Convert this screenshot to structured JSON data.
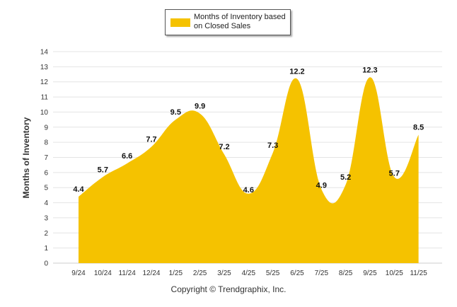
{
  "chart_data": {
    "type": "area",
    "title": "",
    "xlabel": "",
    "ylabel": "Months of Inventory",
    "ylim": [
      0,
      14
    ],
    "yticks": [
      0,
      1,
      2,
      3,
      4,
      5,
      6,
      7,
      8,
      9,
      10,
      11,
      12,
      13,
      14
    ],
    "grid": true,
    "legend_position": "top-center",
    "categories": [
      "9/24",
      "10/24",
      "11/24",
      "12/24",
      "1/25",
      "2/25",
      "3/25",
      "4/25",
      "5/25",
      "6/25",
      "7/25",
      "8/25",
      "9/25",
      "10/25",
      "11/25"
    ],
    "series": [
      {
        "name": "Months of Inventory based on Closed Sales",
        "values": [
          4.4,
          5.7,
          6.6,
          7.7,
          9.5,
          9.9,
          7.2,
          4.6,
          7.3,
          12.2,
          4.9,
          5.2,
          12.3,
          5.7,
          8.5
        ],
        "labels": [
          "4.4",
          "5.7",
          "6.6",
          "7.7",
          "9.5",
          "9.9",
          "7.2",
          "4.6",
          "7.3",
          "12.2",
          "4.9",
          "5.2",
          "12.3",
          "5.7",
          "8.5"
        ],
        "color": "#f5c200"
      }
    ]
  },
  "legend": {
    "label_line1": "Months of Inventory based",
    "label_line2": "on Closed Sales",
    "swatch_color": "#f5c200"
  },
  "footer": {
    "copyright": "Copyright © Trendgraphix, Inc."
  },
  "colors": {
    "grid": "#e4e4e4",
    "axis_text": "#333333",
    "label_text": "#111111"
  }
}
